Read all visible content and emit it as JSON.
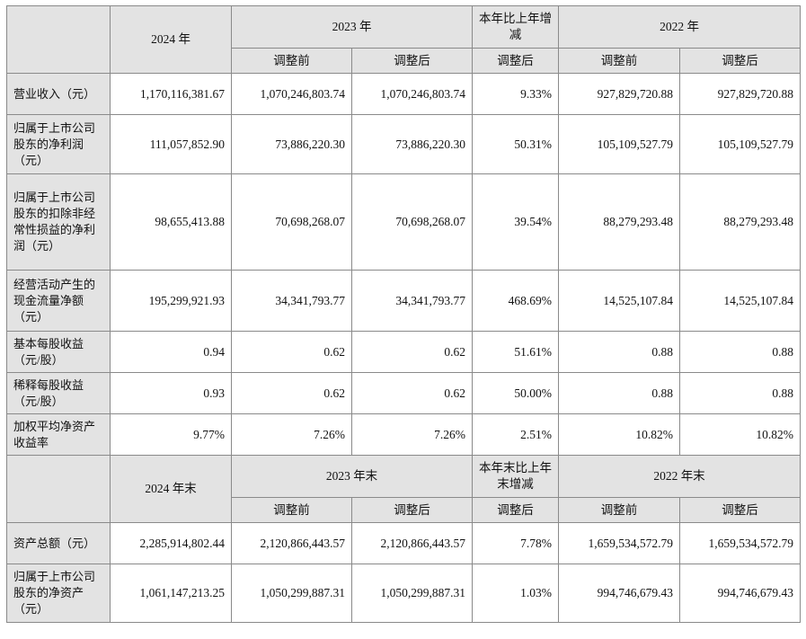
{
  "header1": {
    "year2024": "2024 年",
    "year2023": "2023 年",
    "change": "本年比上年增减",
    "year2022": "2022 年",
    "before": "调整前",
    "after": "调整后"
  },
  "header2": {
    "year2024": "2024 年末",
    "year2023": "2023 年末",
    "change": "本年末比上年末增减",
    "year2022": "2022 年末",
    "before": "调整前",
    "after": "调整后"
  },
  "rows1": [
    {
      "label": "营业收入（元）",
      "v2024": "1,170,116,381.67",
      "v2023_before": "1,070,246,803.74",
      "v2023_after": "1,070,246,803.74",
      "change": "9.33%",
      "v2022_before": "927,829,720.88",
      "v2022_after": "927,829,720.88"
    },
    {
      "label": "归属于上市公司股东的净利润（元）",
      "v2024": "111,057,852.90",
      "v2023_before": "73,886,220.30",
      "v2023_after": "73,886,220.30",
      "change": "50.31%",
      "v2022_before": "105,109,527.79",
      "v2022_after": "105,109,527.79"
    },
    {
      "label": "归属于上市公司股东的扣除非经常性损益的净利润（元）",
      "v2024": "98,655,413.88",
      "v2023_before": "70,698,268.07",
      "v2023_after": "70,698,268.07",
      "change": "39.54%",
      "v2022_before": "88,279,293.48",
      "v2022_after": "88,279,293.48"
    },
    {
      "label": "经营活动产生的现金流量净额（元）",
      "v2024": "195,299,921.93",
      "v2023_before": "34,341,793.77",
      "v2023_after": "34,341,793.77",
      "change": "468.69%",
      "v2022_before": "14,525,107.84",
      "v2022_after": "14,525,107.84"
    },
    {
      "label": "基本每股收益（元/股）",
      "v2024": "0.94",
      "v2023_before": "0.62",
      "v2023_after": "0.62",
      "change": "51.61%",
      "v2022_before": "0.88",
      "v2022_after": "0.88"
    },
    {
      "label": "稀释每股收益（元/股）",
      "v2024": "0.93",
      "v2023_before": "0.62",
      "v2023_after": "0.62",
      "change": "50.00%",
      "v2022_before": "0.88",
      "v2022_after": "0.88"
    },
    {
      "label": "加权平均净资产收益率",
      "v2024": "9.77%",
      "v2023_before": "7.26%",
      "v2023_after": "7.26%",
      "change": "2.51%",
      "v2022_before": "10.82%",
      "v2022_after": "10.82%"
    }
  ],
  "rows2": [
    {
      "label": "资产总额（元）",
      "v2024": "2,285,914,802.44",
      "v2023_before": "2,120,866,443.57",
      "v2023_after": "2,120,866,443.57",
      "change": "7.78%",
      "v2022_before": "1,659,534,572.79",
      "v2022_after": "1,659,534,572.79"
    },
    {
      "label": "归属于上市公司股东的净资产（元）",
      "v2024": "1,061,147,213.25",
      "v2023_before": "1,050,299,887.31",
      "v2023_after": "1,050,299,887.31",
      "change": "1.03%",
      "v2022_before": "994,746,679.43",
      "v2022_after": "994,746,679.43"
    }
  ]
}
